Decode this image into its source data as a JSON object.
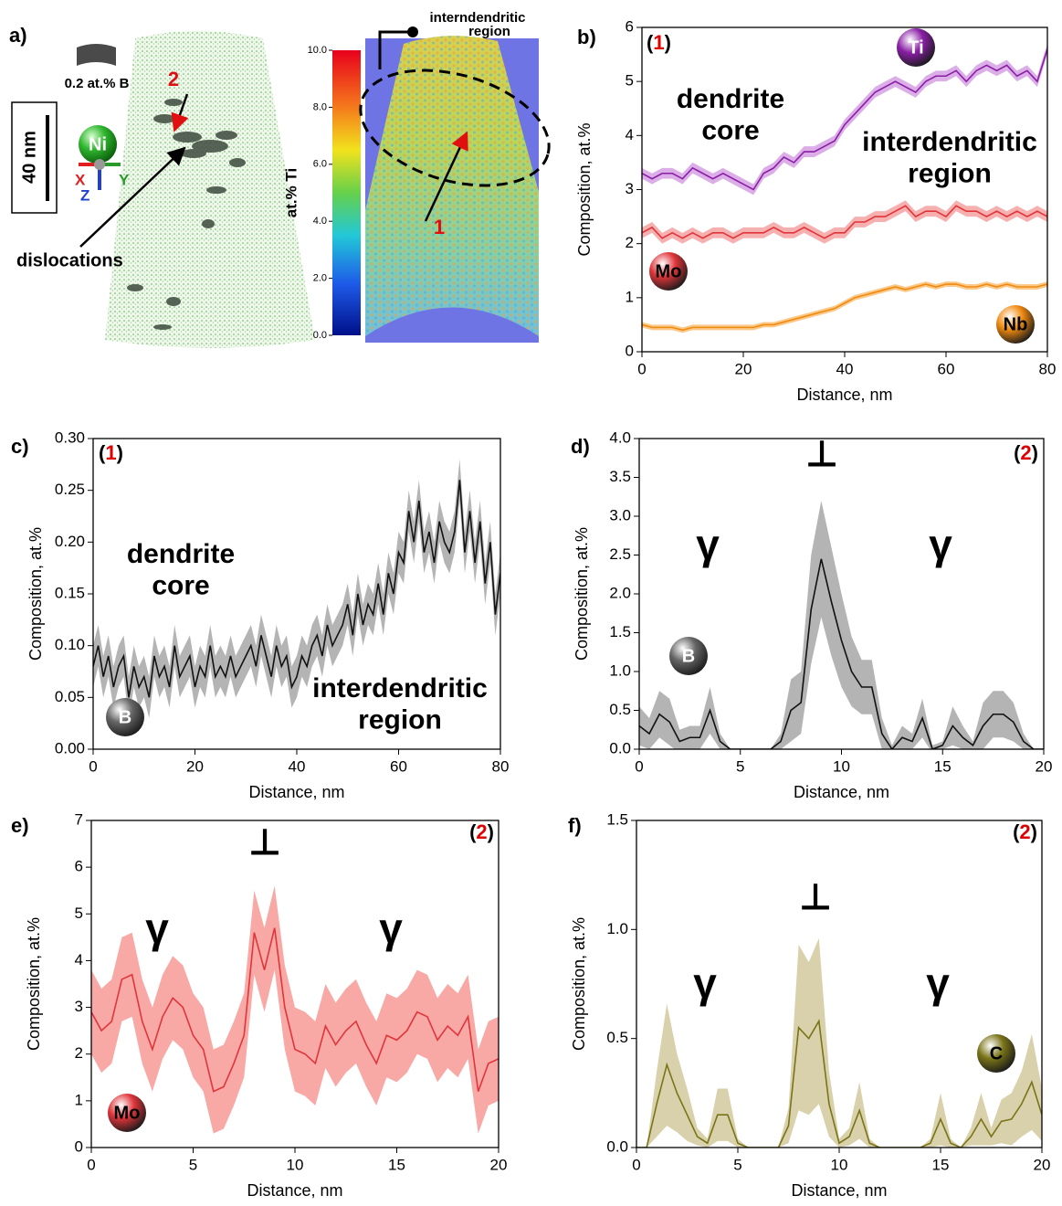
{
  "panel_a": {
    "label": "a)",
    "b_label": "0.2 at.% B",
    "element": "Ni",
    "scale_bar": "40 nm",
    "axes": [
      "X",
      "Y",
      "Z"
    ],
    "region_2": "2",
    "dislocations": "dislocations",
    "region_1": "1",
    "callout": [
      "interndendritic",
      "region"
    ],
    "colorbar": {
      "label": "at.% Ti",
      "lim": [
        0,
        10
      ],
      "ticks": [
        {
          "value": 0,
          "label": "0.0"
        },
        {
          "value": 2,
          "label": "2.0"
        },
        {
          "value": 4,
          "label": "4.0"
        },
        {
          "value": 6,
          "label": "6.0"
        },
        {
          "value": 8,
          "label": "8.0"
        },
        {
          "value": 10,
          "label": "10.0"
        }
      ]
    }
  },
  "chart_data": [
    {
      "type": "line",
      "panel": "b)",
      "region_mark": [
        "(",
        "1",
        ")"
      ],
      "region_color": "#e00000",
      "xlabel": "Distance, nm",
      "ylabel": "Composition, at.%",
      "xlim": [
        0,
        80
      ],
      "xticks": [
        0,
        20,
        40,
        60,
        80
      ],
      "ylim": [
        0,
        6
      ],
      "yticks": [
        0,
        1,
        2,
        3,
        4,
        5,
        6
      ],
      "annotations": [
        [
          "dendrite",
          "core"
        ],
        [
          "interdendritic",
          "region"
        ]
      ],
      "x": [
        0,
        2,
        4,
        6,
        8,
        10,
        12,
        14,
        16,
        18,
        20,
        22,
        24,
        26,
        28,
        30,
        32,
        34,
        36,
        38,
        40,
        42,
        44,
        46,
        48,
        50,
        52,
        54,
        56,
        58,
        60,
        62,
        64,
        66,
        68,
        70,
        72,
        74,
        76,
        78,
        80
      ],
      "series": [
        {
          "name": "Ti",
          "color": "#8a1fa6",
          "band_color": "#dcaee8",
          "error": 0.1,
          "values": [
            3.3,
            3.2,
            3.3,
            3.3,
            3.2,
            3.4,
            3.3,
            3.2,
            3.3,
            3.2,
            3.1,
            3.0,
            3.3,
            3.4,
            3.6,
            3.5,
            3.7,
            3.7,
            3.8,
            3.9,
            4.2,
            4.4,
            4.6,
            4.8,
            4.9,
            5.0,
            4.9,
            4.8,
            5.0,
            5.1,
            5.1,
            5.2,
            5.0,
            5.2,
            5.3,
            5.2,
            5.3,
            5.1,
            5.2,
            5.0,
            5.6
          ]
        },
        {
          "name": "Mo",
          "color": "#e0353a",
          "band_color": "#f6b0b0",
          "error": 0.1,
          "values": [
            2.2,
            2.3,
            2.1,
            2.2,
            2.1,
            2.2,
            2.1,
            2.2,
            2.2,
            2.1,
            2.2,
            2.2,
            2.2,
            2.3,
            2.2,
            2.2,
            2.3,
            2.2,
            2.1,
            2.2,
            2.2,
            2.4,
            2.4,
            2.5,
            2.5,
            2.6,
            2.7,
            2.5,
            2.6,
            2.6,
            2.5,
            2.7,
            2.6,
            2.6,
            2.5,
            2.6,
            2.5,
            2.6,
            2.5,
            2.6,
            2.5
          ]
        },
        {
          "name": "Nb",
          "color": "#f08a10",
          "band_color": "#fbc98a",
          "error": 0.05,
          "values": [
            0.5,
            0.45,
            0.45,
            0.45,
            0.4,
            0.45,
            0.45,
            0.45,
            0.45,
            0.45,
            0.45,
            0.45,
            0.5,
            0.5,
            0.55,
            0.6,
            0.65,
            0.7,
            0.75,
            0.8,
            0.9,
            1.0,
            1.05,
            1.1,
            1.15,
            1.2,
            1.15,
            1.2,
            1.25,
            1.2,
            1.25,
            1.25,
            1.2,
            1.2,
            1.25,
            1.2,
            1.25,
            1.2,
            1.2,
            1.2,
            1.25
          ]
        }
      ]
    },
    {
      "type": "line",
      "panel": "c)",
      "region_mark": [
        "(",
        "1",
        ")"
      ],
      "region_color": "#e00000",
      "xlabel": "Distance, nm",
      "ylabel": "Composition, at.%",
      "xlim": [
        0,
        80
      ],
      "xticks": [
        0,
        20,
        40,
        60,
        80
      ],
      "ylim": [
        0,
        0.3
      ],
      "yticks": [
        {
          "value": 0,
          "label": "0.00"
        },
        {
          "value": 0.05,
          "label": "0.05"
        },
        {
          "value": 0.1,
          "label": "0.10"
        },
        {
          "value": 0.15,
          "label": "0.15"
        },
        {
          "value": 0.2,
          "label": "0.20"
        },
        {
          "value": 0.25,
          "label": "0.25"
        },
        {
          "value": 0.3,
          "label": "0.30"
        }
      ],
      "annotations": [
        [
          "dendrite",
          "core"
        ],
        [
          "interdendritic",
          "region"
        ]
      ],
      "x": [
        0,
        1,
        2,
        3,
        4,
        5,
        6,
        7,
        8,
        9,
        10,
        11,
        12,
        13,
        14,
        15,
        16,
        17,
        18,
        19,
        20,
        21,
        22,
        23,
        24,
        25,
        26,
        27,
        28,
        29,
        30,
        31,
        32,
        33,
        34,
        35,
        36,
        37,
        38,
        39,
        40,
        41,
        42,
        43,
        44,
        45,
        46,
        47,
        48,
        49,
        50,
        51,
        52,
        53,
        54,
        55,
        56,
        57,
        58,
        59,
        60,
        61,
        62,
        63,
        64,
        65,
        66,
        67,
        68,
        69,
        70,
        71,
        72,
        73,
        74,
        75,
        76,
        77,
        78,
        79,
        80
      ],
      "series": [
        {
          "name": "B",
          "color": "#111111",
          "band_color": "#b4b4b4",
          "error": 0.02,
          "values": [
            0.08,
            0.1,
            0.07,
            0.09,
            0.06,
            0.08,
            0.09,
            0.05,
            0.08,
            0.06,
            0.07,
            0.05,
            0.09,
            0.07,
            0.08,
            0.06,
            0.1,
            0.07,
            0.08,
            0.09,
            0.06,
            0.08,
            0.07,
            0.1,
            0.07,
            0.08,
            0.07,
            0.09,
            0.07,
            0.08,
            0.09,
            0.1,
            0.08,
            0.11,
            0.09,
            0.07,
            0.1,
            0.08,
            0.09,
            0.06,
            0.07,
            0.09,
            0.08,
            0.1,
            0.11,
            0.09,
            0.12,
            0.1,
            0.11,
            0.12,
            0.14,
            0.11,
            0.15,
            0.12,
            0.14,
            0.13,
            0.16,
            0.13,
            0.17,
            0.15,
            0.19,
            0.18,
            0.23,
            0.2,
            0.24,
            0.19,
            0.21,
            0.18,
            0.22,
            0.2,
            0.19,
            0.21,
            0.26,
            0.19,
            0.23,
            0.18,
            0.22,
            0.16,
            0.2,
            0.13,
            0.17
          ]
        }
      ]
    },
    {
      "type": "line",
      "panel": "d)",
      "region_mark": [
        "(",
        "2",
        ")"
      ],
      "region_color": "#e00000",
      "xlabel": "Distance, nm",
      "ylabel": "Composition, at.%",
      "xlim": [
        0,
        20
      ],
      "xticks": [
        0,
        5,
        10,
        15,
        20
      ],
      "ylim": [
        0,
        4
      ],
      "yticks": [
        {
          "value": 0,
          "label": "0.0"
        },
        {
          "value": 0.5,
          "label": "0.5"
        },
        {
          "value": 1,
          "label": "1.0"
        },
        {
          "value": 1.5,
          "label": "1.5"
        },
        {
          "value": 2,
          "label": "2.0"
        },
        {
          "value": 2.5,
          "label": "2.5"
        },
        {
          "value": 3,
          "label": "3.0"
        },
        {
          "value": 3.5,
          "label": "3.5"
        },
        {
          "value": 4,
          "label": "4.0"
        }
      ],
      "annotations": [
        [
          "⊥"
        ],
        [
          "γ"
        ],
        [
          "γ"
        ]
      ],
      "x": [
        0,
        0.5,
        1,
        1.5,
        2,
        2.5,
        3,
        3.5,
        4,
        4.5,
        5,
        5.5,
        6,
        6.5,
        7,
        7.5,
        8,
        8.5,
        9,
        9.5,
        10,
        10.5,
        11,
        11.5,
        12,
        12.5,
        13,
        13.5,
        14,
        14.5,
        15,
        15.5,
        16,
        16.5,
        17,
        17.5,
        18,
        18.5,
        19,
        19.5,
        20
      ],
      "series": [
        {
          "name": "B",
          "color": "#111111",
          "band_color": "#b4b4b4",
          "errors": [
            0.25,
            0.2,
            0.3,
            0.3,
            0.15,
            0.15,
            0.15,
            0.3,
            0.1,
            0,
            0,
            0,
            0,
            0,
            0.1,
            0.4,
            0.4,
            0.7,
            0.75,
            0.7,
            0.6,
            0.45,
            0.35,
            0.35,
            0.2,
            0.05,
            0.15,
            0.1,
            0.25,
            0.05,
            0.05,
            0.25,
            0.15,
            0.05,
            0.3,
            0.3,
            0.3,
            0.25,
            0.1,
            0,
            0
          ],
          "values": [
            0.3,
            0.2,
            0.45,
            0.35,
            0.1,
            0.15,
            0.15,
            0.5,
            0.1,
            0,
            0,
            0,
            0,
            0,
            0.1,
            0.5,
            0.6,
            1.8,
            2.45,
            1.9,
            1.4,
            1.0,
            0.8,
            0.8,
            0.2,
            0,
            0.15,
            0.1,
            0.4,
            0,
            0.05,
            0.3,
            0.15,
            0.05,
            0.3,
            0.45,
            0.45,
            0.35,
            0.1,
            0,
            0
          ]
        }
      ]
    },
    {
      "type": "line",
      "panel": "e)",
      "region_mark": [
        "(",
        "2",
        ")"
      ],
      "region_color": "#e00000",
      "xlabel": "Distance, nm",
      "ylabel": "Composition, at.%",
      "xlim": [
        0,
        20
      ],
      "xticks": [
        0,
        5,
        10,
        15,
        20
      ],
      "ylim": [
        0,
        7
      ],
      "yticks": [
        0,
        1,
        2,
        3,
        4,
        5,
        6,
        7
      ],
      "annotations": [
        [
          "⊥"
        ],
        [
          "γ"
        ],
        [
          "γ"
        ]
      ],
      "x": [
        0,
        0.5,
        1,
        1.5,
        2,
        2.5,
        3,
        3.5,
        4,
        4.5,
        5,
        5.5,
        6,
        6.5,
        7,
        7.5,
        8,
        8.5,
        9,
        9.5,
        10,
        10.5,
        11,
        11.5,
        12,
        12.5,
        13,
        13.5,
        14,
        14.5,
        15,
        15.5,
        16,
        16.5,
        17,
        17.5,
        18,
        18.5,
        19,
        19.5,
        20
      ],
      "series": [
        {
          "name": "Mo",
          "color": "#e0353a",
          "band_color": "#f8a9a6",
          "error": 0.9,
          "values": [
            2.9,
            2.5,
            2.7,
            3.6,
            3.7,
            2.7,
            2.1,
            2.8,
            3.2,
            3.0,
            2.4,
            2.1,
            1.2,
            1.3,
            1.8,
            2.4,
            4.6,
            3.8,
            4.7,
            3.0,
            2.1,
            2.0,
            1.8,
            2.6,
            2.2,
            2.5,
            2.7,
            2.2,
            1.8,
            2.4,
            2.3,
            2.5,
            2.9,
            2.8,
            2.3,
            2.6,
            2.4,
            2.8,
            1.2,
            1.8,
            1.9
          ]
        }
      ]
    },
    {
      "type": "line",
      "panel": "f)",
      "region_mark": [
        "(",
        "2",
        ")"
      ],
      "region_color": "#e00000",
      "xlabel": "Distance, nm",
      "ylabel": "Composition, at.%",
      "xlim": [
        0,
        20
      ],
      "xticks": [
        0,
        5,
        10,
        15,
        20
      ],
      "ylim": [
        0,
        1.5
      ],
      "yticks": [
        {
          "value": 0,
          "label": "0.0"
        },
        {
          "value": 0.5,
          "label": "0.5"
        },
        {
          "value": 1,
          "label": "1.0"
        },
        {
          "value": 1.5,
          "label": "1.5"
        }
      ],
      "annotations": [
        [
          "⊥"
        ],
        [
          "γ"
        ],
        [
          "γ"
        ]
      ],
      "x": [
        0,
        0.5,
        1,
        1.5,
        2,
        2.5,
        3,
        3.5,
        4,
        4.5,
        5,
        5.5,
        6,
        6.5,
        7,
        7.5,
        8,
        8.5,
        9,
        9.5,
        10,
        10.5,
        11,
        11.5,
        12,
        12.5,
        13,
        13.5,
        14,
        14.5,
        15,
        15.5,
        16,
        16.5,
        17,
        17.5,
        18,
        18.5,
        19,
        19.5,
        20
      ],
      "series": [
        {
          "name": "C",
          "color": "#7a7418",
          "band_color": "#d9d1ab",
          "errors": [
            0,
            0,
            0.15,
            0.28,
            0.18,
            0.12,
            0.04,
            0.02,
            0.12,
            0.12,
            0.02,
            0,
            0,
            0,
            0,
            0.08,
            0.38,
            0.35,
            0.38,
            0.15,
            0.02,
            0.04,
            0.13,
            0.02,
            0,
            0,
            0,
            0,
            0,
            0.02,
            0.12,
            0.02,
            0,
            0.04,
            0.12,
            0.04,
            0.1,
            0.12,
            0.15,
            0.22,
            0.12
          ],
          "values": [
            0,
            0,
            0.2,
            0.38,
            0.25,
            0.15,
            0.05,
            0.02,
            0.15,
            0.15,
            0.02,
            0,
            0,
            0,
            0,
            0.1,
            0.55,
            0.5,
            0.58,
            0.2,
            0.02,
            0.05,
            0.17,
            0.02,
            0,
            0,
            0,
            0,
            0,
            0.02,
            0.13,
            0.02,
            0,
            0.05,
            0.13,
            0.05,
            0.12,
            0.13,
            0.2,
            0.3,
            0.15
          ]
        }
      ]
    }
  ]
}
